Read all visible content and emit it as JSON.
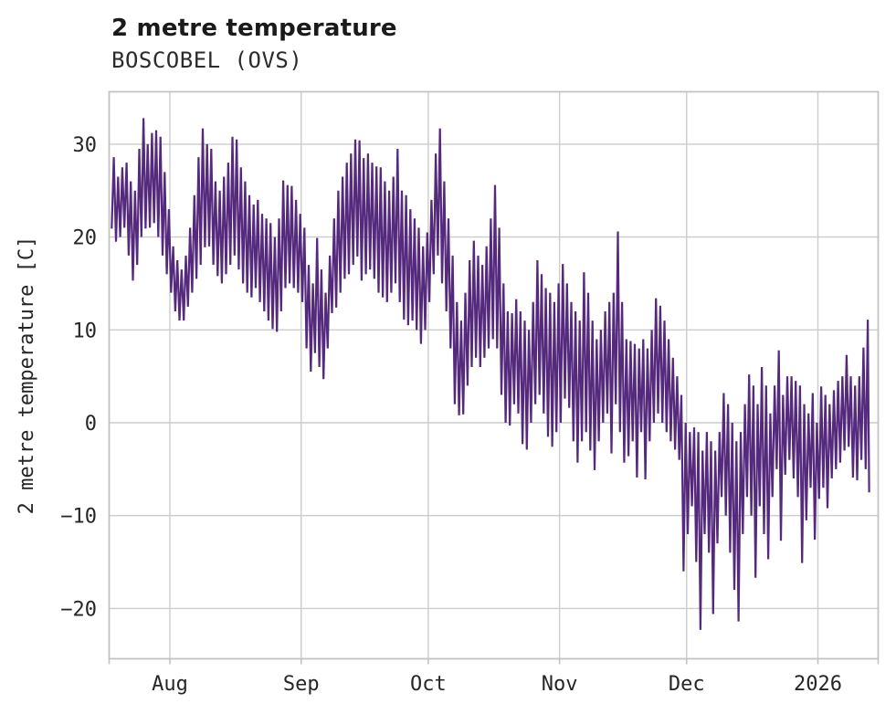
{
  "header": {
    "title": "2 metre temperature",
    "subtitle": "BOSCOBEL (OVS)"
  },
  "colors": {
    "line": "#552a7d",
    "grid": "#cccccc",
    "frame": "#c3c3c3",
    "text": "#262626",
    "background": "#ffffff"
  },
  "chart_data": {
    "type": "line",
    "title": "2 metre temperature",
    "station": "BOSCOBEL (OVS)",
    "ylabel": "2 metre temperature [C]",
    "unit": "C",
    "grid": "on",
    "legend": "none",
    "y_ticks": [
      30,
      20,
      10,
      0,
      -10,
      -20
    ],
    "y_tick_labels": [
      "30",
      "20",
      "10",
      "0",
      "−10",
      "−20"
    ],
    "ylim": [
      -25.5,
      35.6
    ],
    "x_tick_labels": [
      "Aug",
      "Sep",
      "Oct",
      "Nov",
      "Dec",
      "2026"
    ],
    "x_tick_day_offsets": [
      0,
      31,
      61,
      92,
      122,
      153
    ],
    "x_range_days": [
      -14.4,
      167.2
    ],
    "start_label": "Jul 18",
    "end_label": "Jan 13 2026",
    "sampling_note": "daily early-morning minimum and afternoon maximum, estimated from plot",
    "final_value": -7.5,
    "daily_min_max": [
      [
        20.9,
        28.6
      ],
      [
        19.5,
        26.5
      ],
      [
        20,
        27.5
      ],
      [
        21,
        28
      ],
      [
        18,
        26
      ],
      [
        15.3,
        25
      ],
      [
        17,
        29.5
      ],
      [
        20,
        32.8
      ],
      [
        20.9,
        30
      ],
      [
        21,
        31.2
      ],
      [
        21.5,
        31.5
      ],
      [
        20,
        30.8
      ],
      [
        18,
        27
      ],
      [
        16,
        23
      ],
      [
        14,
        19
      ],
      [
        12,
        17.5
      ],
      [
        11,
        16.5
      ],
      [
        11,
        18
      ],
      [
        12.5,
        21
      ],
      [
        14,
        24.5
      ],
      [
        15.5,
        28.6
      ],
      [
        17,
        31.7
      ],
      [
        18.9,
        30
      ],
      [
        19,
        29.5
      ],
      [
        17,
        26
      ],
      [
        15.8,
        25
      ],
      [
        15,
        26.5
      ],
      [
        16,
        28
      ],
      [
        17,
        30.8
      ],
      [
        18,
        30.5
      ],
      [
        16.5,
        27.5
      ],
      [
        15,
        26
      ],
      [
        14,
        24.5
      ],
      [
        13.5,
        23.5
      ],
      [
        14.5,
        24
      ],
      [
        13,
        22.5
      ],
      [
        12,
        22
      ],
      [
        11,
        21.5
      ],
      [
        10.1,
        20
      ],
      [
        9.8,
        22
      ],
      [
        12,
        26.1
      ],
      [
        14.5,
        25.6
      ],
      [
        15,
        25.5
      ],
      [
        14.5,
        24
      ],
      [
        14,
        22.5
      ],
      [
        13,
        21
      ],
      [
        8,
        17
      ],
      [
        5.5,
        15
      ],
      [
        7.5,
        19.9
      ],
      [
        6,
        16.5
      ],
      [
        4.7,
        14
      ],
      [
        8,
        18
      ],
      [
        11.8,
        22
      ],
      [
        12.4,
        25
      ],
      [
        14,
        26.5
      ],
      [
        15.5,
        28
      ],
      [
        16,
        29
      ],
      [
        17,
        30.5
      ],
      [
        17.9,
        30.4
      ],
      [
        15.3,
        28.5
      ],
      [
        16,
        29
      ],
      [
        16.5,
        28
      ],
      [
        15.5,
        27.6
      ],
      [
        14,
        27.5
      ],
      [
        13.5,
        26
      ],
      [
        13,
        25
      ],
      [
        14,
        26.5
      ],
      [
        15,
        29.5
      ],
      [
        13,
        25
      ],
      [
        11.1,
        24.5
      ],
      [
        10.5,
        23
      ],
      [
        11,
        22
      ],
      [
        10,
        21
      ],
      [
        8.5,
        19
      ],
      [
        10,
        20.5
      ],
      [
        13,
        24
      ],
      [
        16,
        29
      ],
      [
        18,
        31.7
      ],
      [
        15,
        26
      ],
      [
        12,
        22
      ],
      [
        8,
        18
      ],
      [
        2,
        13
      ],
      [
        0.8,
        11
      ],
      [
        0.9,
        14
      ],
      [
        4,
        17.5
      ],
      [
        6,
        19.6
      ],
      [
        7,
        18
      ],
      [
        6,
        17
      ],
      [
        7,
        19
      ],
      [
        8,
        22
      ],
      [
        9,
        25.6
      ],
      [
        8,
        21
      ],
      [
        3,
        15
      ],
      [
        0,
        12
      ],
      [
        -0.3,
        11.8
      ],
      [
        2,
        13.3
      ],
      [
        1,
        12
      ],
      [
        -2.3,
        11
      ],
      [
        -2.9,
        10
      ],
      [
        0,
        13
      ],
      [
        2,
        17.5
      ],
      [
        3,
        16
      ],
      [
        1,
        14.5
      ],
      [
        -1.5,
        14
      ],
      [
        -2.6,
        13
      ],
      [
        -1,
        15
      ],
      [
        0,
        17.1
      ],
      [
        2.6,
        15
      ],
      [
        1.6,
        13
      ],
      [
        -2,
        12
      ],
      [
        -4.3,
        11
      ],
      [
        -2,
        16.2
      ],
      [
        -1,
        14
      ],
      [
        -3,
        11
      ],
      [
        -5.1,
        9
      ],
      [
        -2,
        10
      ],
      [
        0,
        12
      ],
      [
        1,
        13
      ],
      [
        -3.3,
        14
      ],
      [
        2,
        20.6
      ],
      [
        -1,
        13
      ],
      [
        -4.3,
        9
      ],
      [
        -3.6,
        8.8
      ],
      [
        -2,
        8.5
      ],
      [
        -5.9,
        8
      ],
      [
        -1,
        9
      ],
      [
        -6.1,
        8
      ],
      [
        -2,
        10
      ],
      [
        0,
        13.4
      ],
      [
        1,
        12.6
      ],
      [
        0,
        11
      ],
      [
        -1,
        9
      ],
      [
        -2,
        7
      ],
      [
        -2.9,
        5
      ],
      [
        -4,
        3
      ],
      [
        -16,
        0
      ],
      [
        -12,
        -1
      ],
      [
        -9,
        -0.5
      ],
      [
        -15,
        -1
      ],
      [
        -22.3,
        -3
      ],
      [
        -12,
        -1
      ],
      [
        -14,
        -2
      ],
      [
        -20.6,
        -3
      ],
      [
        -13,
        -1
      ],
      [
        -8,
        3.2
      ],
      [
        -10,
        2
      ],
      [
        -14,
        0
      ],
      [
        -18,
        -2
      ],
      [
        -21.4,
        -1
      ],
      [
        -12,
        2
      ],
      [
        -8,
        5.2
      ],
      [
        -10,
        4
      ],
      [
        -16.7,
        2
      ],
      [
        -9,
        6
      ],
      [
        -12,
        4
      ],
      [
        -14.7,
        1
      ],
      [
        -8,
        4
      ],
      [
        -5,
        7.8
      ],
      [
        -12.7,
        3
      ],
      [
        -5.6,
        5
      ],
      [
        -4,
        5
      ],
      [
        -6,
        4.5
      ],
      [
        -8,
        4
      ],
      [
        -15.1,
        2
      ],
      [
        -10.5,
        1
      ],
      [
        -7,
        3.2
      ],
      [
        -12.6,
        0
      ],
      [
        -8.2,
        3.9
      ],
      [
        -7,
        3
      ],
      [
        -9.2,
        2
      ],
      [
        -6,
        3.5
      ],
      [
        -5,
        4.5
      ],
      [
        -4.3,
        5
      ],
      [
        -3,
        7.3
      ],
      [
        -2.6,
        5
      ],
      [
        -5.9,
        4
      ],
      [
        -6.2,
        5
      ],
      [
        -4,
        8.1
      ],
      [
        -5,
        11.1
      ]
    ]
  }
}
